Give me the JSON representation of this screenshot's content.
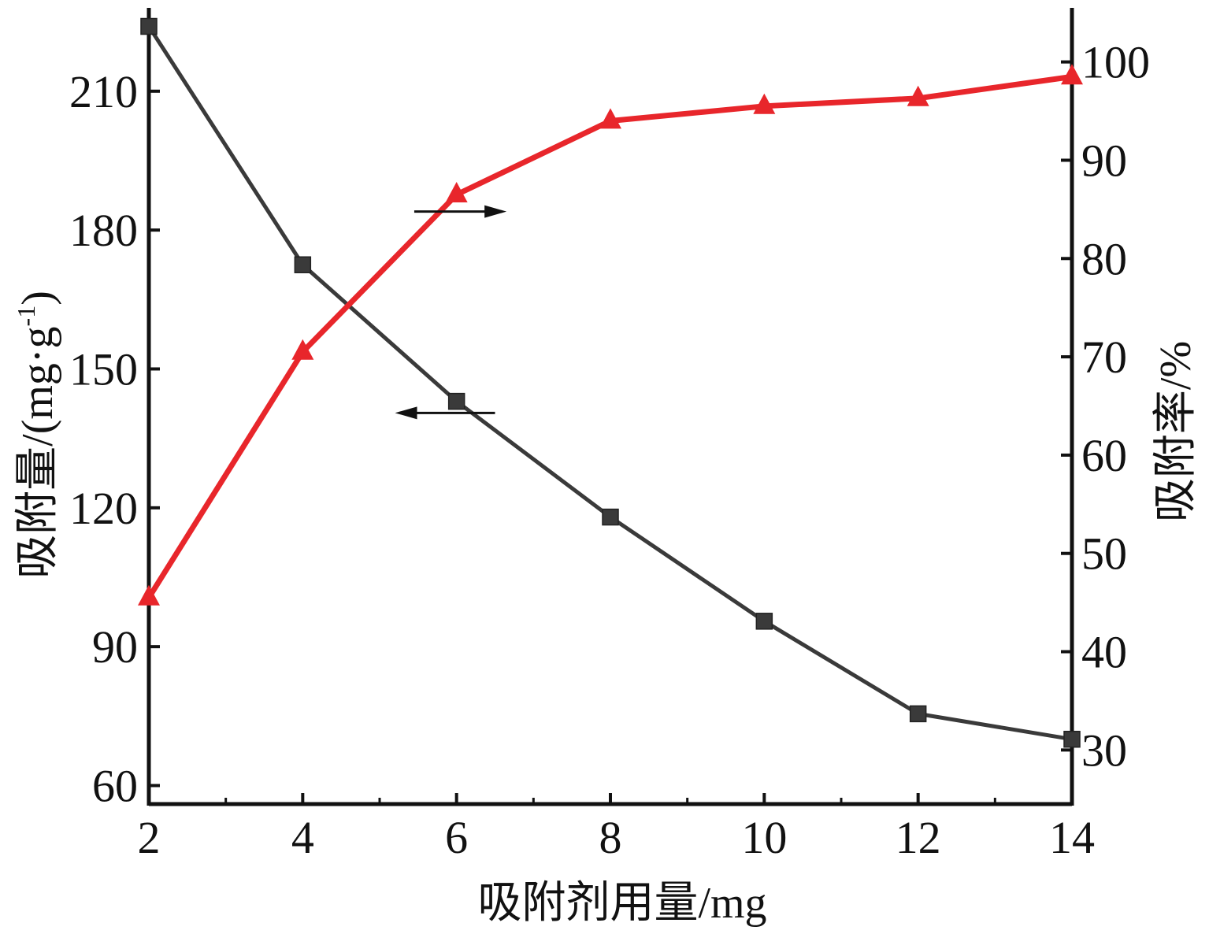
{
  "chart_data": {
    "type": "line",
    "title": "",
    "xlabel": "吸附剂用量/mg",
    "ylabel_left": "吸附量/(mg·g",
    "ylabel_left_sup": "-1",
    "ylabel_left_close": ")",
    "ylabel_right": "吸附率/%",
    "x": [
      2,
      4,
      6,
      8,
      10,
      12,
      14
    ],
    "x_ticks": [
      "2",
      "4",
      "6",
      "8",
      "10",
      "12",
      "14"
    ],
    "xlim": [
      2,
      14
    ],
    "y_left_ticks": [
      "60",
      "90",
      "120",
      "150",
      "180",
      "210"
    ],
    "y_left_tick_values": [
      60,
      90,
      120,
      150,
      180,
      210
    ],
    "ylim_left": [
      56,
      228
    ],
    "y_right_ticks": [
      "30",
      "40",
      "50",
      "60",
      "70",
      "80",
      "90",
      "100"
    ],
    "y_right_tick_values": [
      30,
      40,
      50,
      60,
      70,
      80,
      90,
      100
    ],
    "ylim_right": [
      24.5,
      105.5
    ],
    "grid": false,
    "legend": "none",
    "series": [
      {
        "axis": "left",
        "marker": "square",
        "color": "#3a3a3a",
        "values": [
          224,
          172.5,
          143,
          118,
          95.5,
          75.5,
          70
        ]
      },
      {
        "axis": "right",
        "marker": "triangle",
        "color": "#e8262b",
        "values": [
          45.5,
          70.5,
          86.5,
          94,
          95.5,
          96.3,
          98.5
        ]
      }
    ],
    "annotations": [
      {
        "kind": "arrow",
        "direction": "right",
        "points_to": "right-axis",
        "x_from": 5.45,
        "x_to": 6.65,
        "y_left": 184
      },
      {
        "kind": "arrow",
        "direction": "left",
        "points_to": "left-axis",
        "x_from": 6.5,
        "x_to": 5.2,
        "y_left": 140.5
      }
    ]
  }
}
